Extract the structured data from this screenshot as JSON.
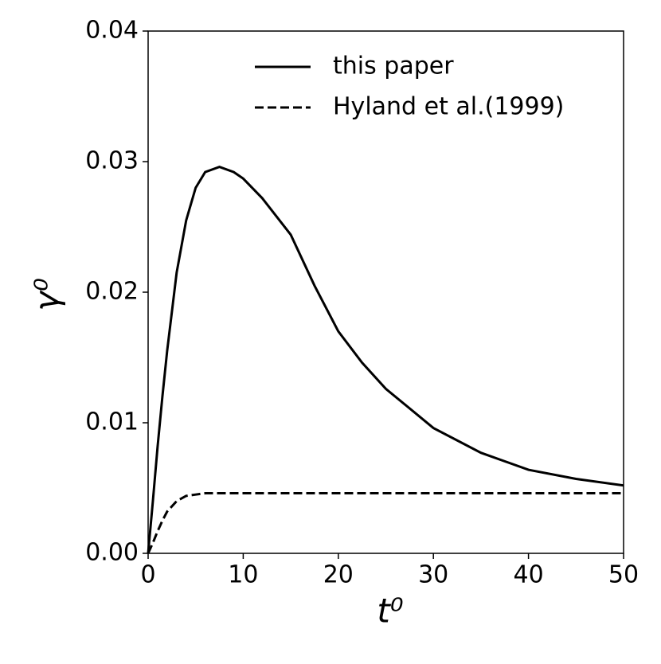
{
  "chart_data": {
    "type": "line",
    "xlabel": "t⁰",
    "ylabel": "γ⁰",
    "x": [
      0,
      0.5,
      1,
      1.5,
      2,
      3,
      4,
      5,
      6,
      7.5,
      9,
      10,
      12,
      15,
      17.5,
      20,
      22.5,
      25,
      30,
      35,
      40,
      45,
      50
    ],
    "series": [
      {
        "name": "this paper",
        "color": "#000000",
        "dash": "solid",
        "values": [
          0,
          0.004,
          0.0082,
          0.012,
          0.0155,
          0.0215,
          0.0255,
          0.028,
          0.0292,
          0.0296,
          0.0292,
          0.0287,
          0.0272,
          0.0244,
          0.0205,
          0.017,
          0.0146,
          0.0126,
          0.0096,
          0.0077,
          0.0064,
          0.0057,
          0.0052
        ]
      },
      {
        "name": "Hyland et al.(1999)",
        "color": "#000000",
        "dash": "dashed",
        "values": [
          0,
          0.0008,
          0.0017,
          0.0025,
          0.0032,
          0.004,
          0.0044,
          0.0045,
          0.0046,
          0.0046,
          0.0046,
          0.0046,
          0.0046,
          0.0046,
          0.0046,
          0.0046,
          0.0046,
          0.0046,
          0.0046,
          0.0046,
          0.0046,
          0.0046,
          0.0046
        ]
      }
    ],
    "xlim": [
      0,
      50
    ],
    "xticks": [
      0,
      10,
      20,
      30,
      40,
      50
    ],
    "ylim": [
      0,
      0.04
    ],
    "yticks": [
      {
        "value": 0,
        "label": "0.00"
      },
      {
        "value": 0.01,
        "label": "0.01"
      },
      {
        "value": 0.02,
        "label": "0.02"
      },
      {
        "value": 0.03,
        "label": "0.03"
      },
      {
        "value": 0.04,
        "label": "0.04"
      }
    ],
    "legend": "upper right",
    "grid": false
  }
}
